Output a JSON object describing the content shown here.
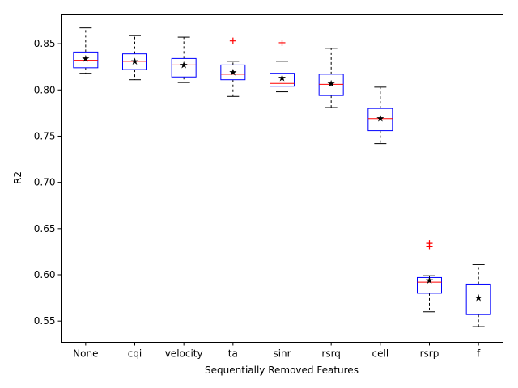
{
  "chart_data": {
    "type": "box",
    "xlabel": "Sequentially Removed Features",
    "ylabel": "R2",
    "ylim": [
      0.527,
      0.882
    ],
    "yticks": [
      0.55,
      0.6,
      0.65,
      0.7,
      0.75,
      0.8,
      0.85
    ],
    "ytick_labels": [
      "0.55",
      "0.60",
      "0.65",
      "0.70",
      "0.75",
      "0.80",
      "0.85"
    ],
    "grid": false,
    "colors": {
      "box": "#0000ff",
      "median": "#ff0000",
      "whisker": "#000000",
      "outlier": "#ff0000",
      "mean": "#000000"
    },
    "categories": [
      "None",
      "cqi",
      "velocity",
      "ta",
      "sinr",
      "rsrq",
      "cell",
      "rsrp",
      "f"
    ],
    "boxes": [
      {
        "whislo": 0.818,
        "q1": 0.824,
        "med": 0.832,
        "q3": 0.841,
        "whishi": 0.867,
        "mean": 0.834,
        "fliers": []
      },
      {
        "whislo": 0.811,
        "q1": 0.822,
        "med": 0.831,
        "q3": 0.839,
        "whishi": 0.859,
        "mean": 0.831,
        "fliers": []
      },
      {
        "whislo": 0.808,
        "q1": 0.814,
        "med": 0.827,
        "q3": 0.834,
        "whishi": 0.857,
        "mean": 0.827,
        "fliers": []
      },
      {
        "whislo": 0.793,
        "q1": 0.811,
        "med": 0.817,
        "q3": 0.827,
        "whishi": 0.831,
        "mean": 0.819,
        "fliers": [
          0.853
        ]
      },
      {
        "whislo": 0.798,
        "q1": 0.804,
        "med": 0.807,
        "q3": 0.818,
        "whishi": 0.831,
        "mean": 0.813,
        "fliers": [
          0.851
        ]
      },
      {
        "whislo": 0.781,
        "q1": 0.794,
        "med": 0.806,
        "q3": 0.817,
        "whishi": 0.845,
        "mean": 0.807,
        "fliers": []
      },
      {
        "whislo": 0.742,
        "q1": 0.756,
        "med": 0.769,
        "q3": 0.78,
        "whishi": 0.803,
        "mean": 0.769,
        "fliers": []
      },
      {
        "whislo": 0.56,
        "q1": 0.58,
        "med": 0.592,
        "q3": 0.597,
        "whishi": 0.599,
        "mean": 0.594,
        "fliers": [
          0.631,
          0.634
        ]
      },
      {
        "whislo": 0.544,
        "q1": 0.557,
        "med": 0.576,
        "q3": 0.59,
        "whishi": 0.611,
        "mean": 0.575,
        "fliers": []
      }
    ]
  }
}
